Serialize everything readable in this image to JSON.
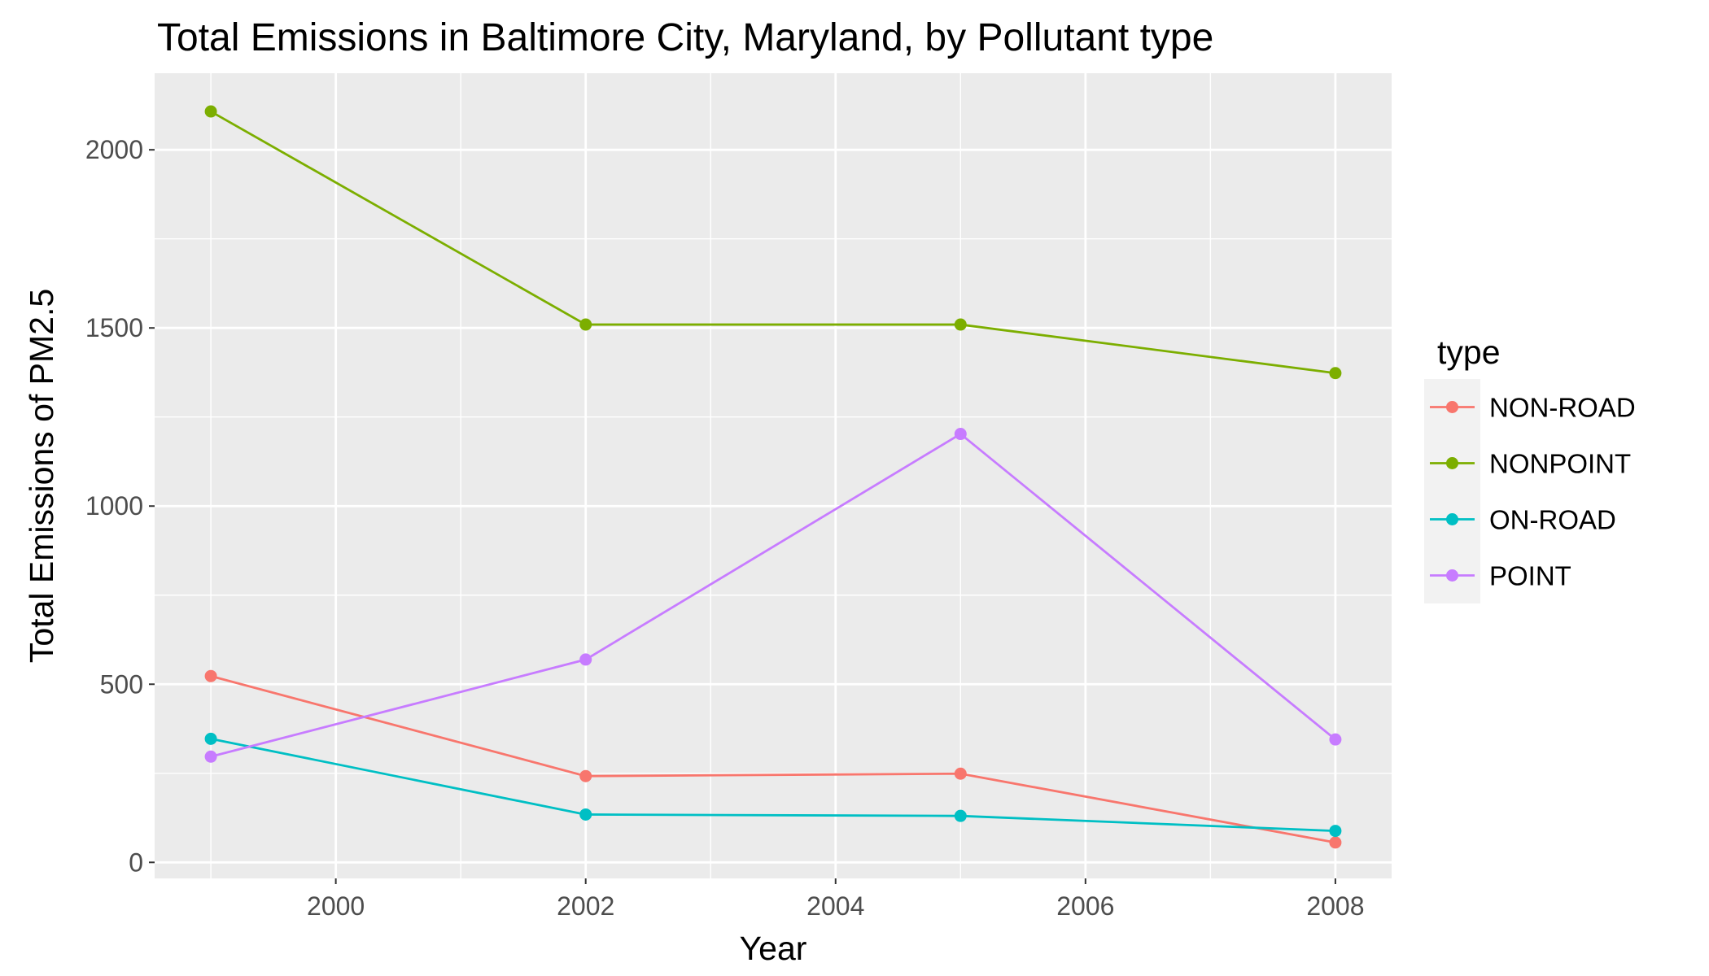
{
  "chart_data": {
    "type": "line",
    "title": "Total Emissions in Baltimore City, Maryland, by Pollutant type",
    "xlabel": "Year",
    "ylabel": "Total Emissions of PM2.5",
    "x": [
      1999,
      2002,
      2005,
      2008
    ],
    "xlim": [
      1998.55,
      2008.45
    ],
    "ylim": [
      -45,
      2215
    ],
    "x_ticks": [
      2000,
      2002,
      2004,
      2006,
      2008
    ],
    "y_ticks": [
      0,
      500,
      1000,
      1500,
      2000
    ],
    "grid": true,
    "legend": {
      "title": "type",
      "position": "right"
    },
    "series": [
      {
        "name": "NON-ROAD",
        "color": "#F8766D",
        "values": [
          522.9,
          242.2,
          248.9,
          55.8
        ]
      },
      {
        "name": "NONPOINT",
        "color": "#7CAE00",
        "values": [
          2107.6,
          1509.5,
          1509.5,
          1373.2
        ]
      },
      {
        "name": "ON-ROAD",
        "color": "#00BFC4",
        "values": [
          346.8,
          134.3,
          130.4,
          88.3
        ]
      },
      {
        "name": "POINT",
        "color": "#C77CFF",
        "values": [
          296.8,
          569.3,
          1202.5,
          344.98
        ]
      }
    ]
  }
}
